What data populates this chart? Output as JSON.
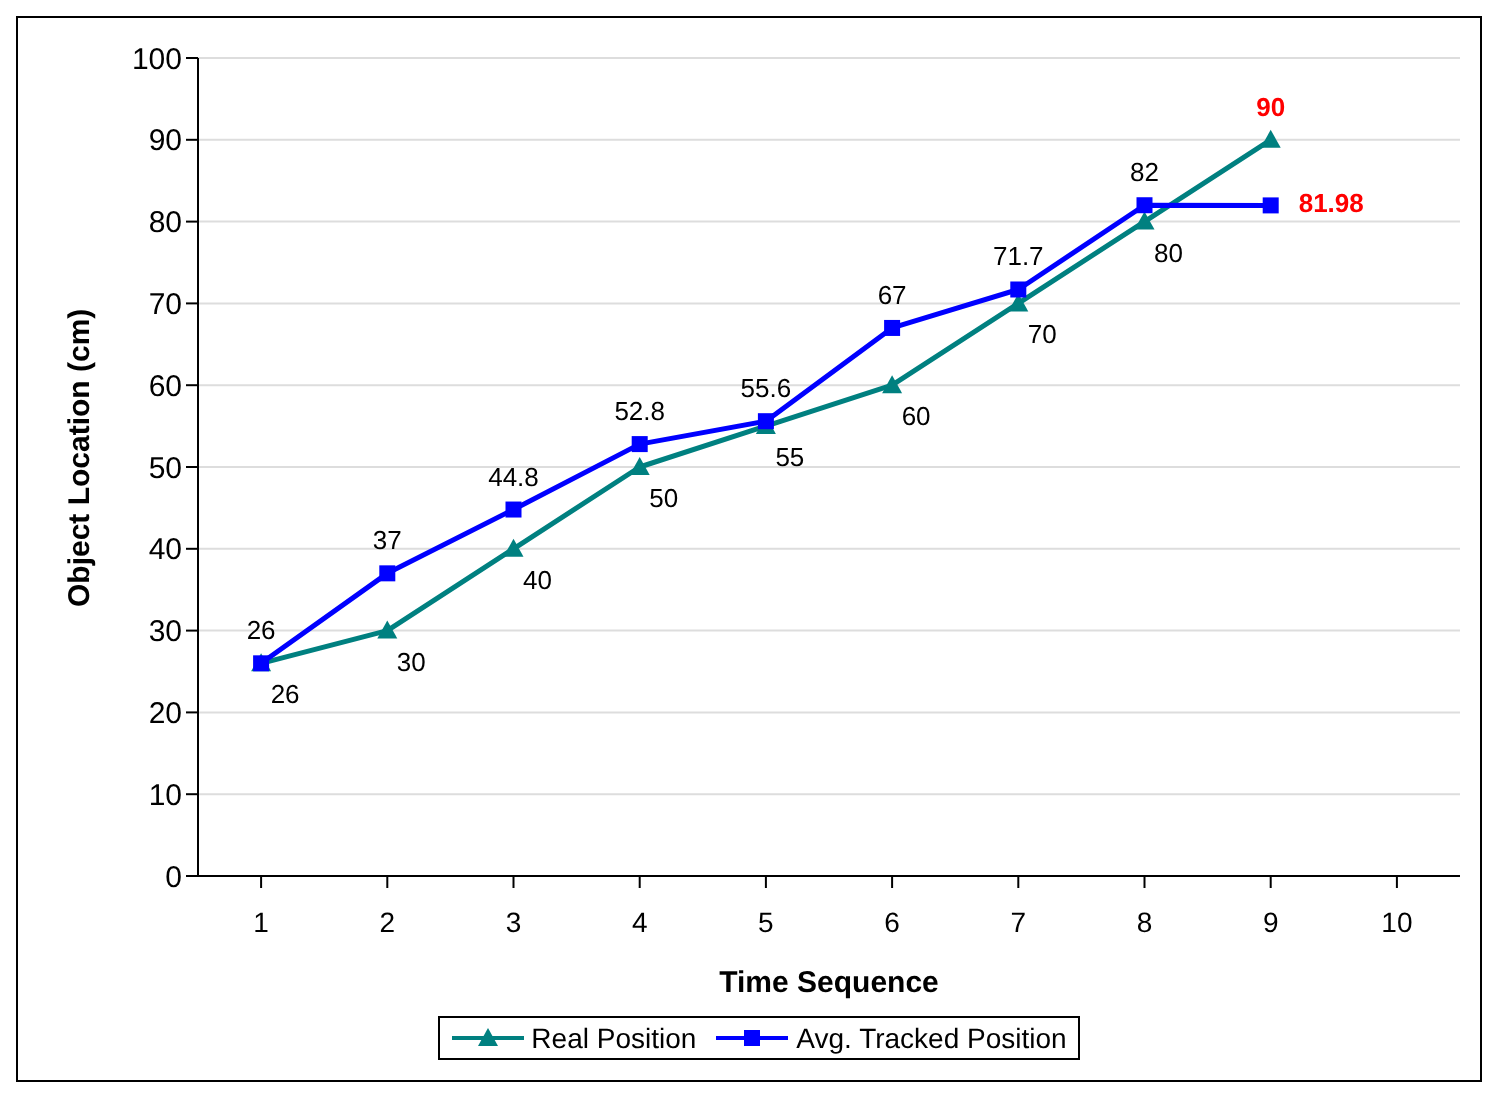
{
  "chart_data": {
    "type": "line",
    "xlabel": "Time Sequence",
    "ylabel": "Object Location (cm)",
    "categories": [
      "1",
      "2",
      "3",
      "4",
      "5",
      "6",
      "7",
      "8",
      "9",
      "10"
    ],
    "series": [
      {
        "name": "Real Position",
        "color": "#008080",
        "marker": "triangle",
        "values": [
          26,
          30,
          40,
          50,
          55,
          60,
          70,
          80,
          90,
          null
        ],
        "value_labels": [
          "26",
          "30",
          "40",
          "50",
          "55",
          "60",
          "70",
          "80",
          "90",
          null
        ]
      },
      {
        "name": "Avg. Tracked Position",
        "color": "#0000ff",
        "marker": "square",
        "values": [
          26,
          37,
          44.8,
          52.8,
          55.6,
          67,
          71.7,
          82,
          81.98,
          null
        ],
        "value_labels": [
          "26",
          "37",
          "44.8",
          "52.8",
          "55.6",
          "67",
          "71.7",
          "82",
          "81.98",
          null
        ]
      }
    ],
    "ylim": [
      0,
      100
    ],
    "yticks": [
      0,
      10,
      20,
      30,
      40,
      50,
      60,
      70,
      80,
      90,
      100
    ],
    "grid": "y",
    "legend": "bottom"
  }
}
